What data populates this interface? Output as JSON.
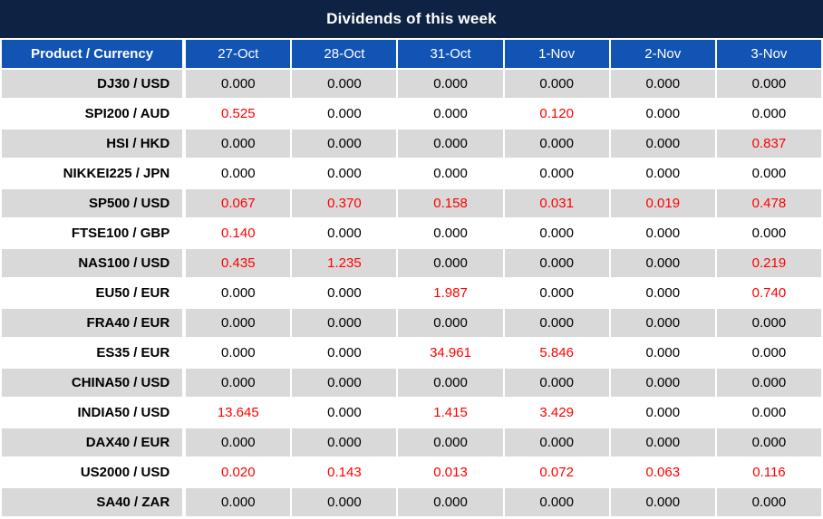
{
  "chart_data": {
    "type": "table",
    "title": "Dividends of this week",
    "columns": [
      "Product / Currency",
      "27-Oct",
      "28-Oct",
      "31-Oct",
      "1-Nov",
      "2-Nov",
      "3-Nov"
    ],
    "rows": [
      {
        "product": "DJ30 / USD",
        "values": [
          "0.000",
          "0.000",
          "0.000",
          "0.000",
          "0.000",
          "0.000"
        ]
      },
      {
        "product": "SPI200 / AUD",
        "values": [
          "0.525",
          "0.000",
          "0.000",
          "0.120",
          "0.000",
          "0.000"
        ]
      },
      {
        "product": "HSI / HKD",
        "values": [
          "0.000",
          "0.000",
          "0.000",
          "0.000",
          "0.000",
          "0.837"
        ]
      },
      {
        "product": "NIKKEI225 / JPN",
        "values": [
          "0.000",
          "0.000",
          "0.000",
          "0.000",
          "0.000",
          "0.000"
        ]
      },
      {
        "product": "SP500 / USD",
        "values": [
          "0.067",
          "0.370",
          "0.158",
          "0.031",
          "0.019",
          "0.478"
        ]
      },
      {
        "product": "FTSE100 / GBP",
        "values": [
          "0.140",
          "0.000",
          "0.000",
          "0.000",
          "0.000",
          "0.000"
        ]
      },
      {
        "product": "NAS100 / USD",
        "values": [
          "0.435",
          "1.235",
          "0.000",
          "0.000",
          "0.000",
          "0.219"
        ]
      },
      {
        "product": "EU50 / EUR",
        "values": [
          "0.000",
          "0.000",
          "1.987",
          "0.000",
          "0.000",
          "0.740"
        ]
      },
      {
        "product": "FRA40 / EUR",
        "values": [
          "0.000",
          "0.000",
          "0.000",
          "0.000",
          "0.000",
          "0.000"
        ]
      },
      {
        "product": "ES35 / EUR",
        "values": [
          "0.000",
          "0.000",
          "34.961",
          "5.846",
          "0.000",
          "0.000"
        ]
      },
      {
        "product": "CHINA50 / USD",
        "values": [
          "0.000",
          "0.000",
          "0.000",
          "0.000",
          "0.000",
          "0.000"
        ]
      },
      {
        "product": "INDIA50 / USD",
        "values": [
          "13.645",
          "0.000",
          "1.415",
          "3.429",
          "0.000",
          "0.000"
        ]
      },
      {
        "product": "DAX40 / EUR",
        "values": [
          "0.000",
          "0.000",
          "0.000",
          "0.000",
          "0.000",
          "0.000"
        ]
      },
      {
        "product": "US2000 / USD",
        "values": [
          "0.020",
          "0.143",
          "0.013",
          "0.072",
          "0.063",
          "0.116"
        ]
      },
      {
        "product": "SA40 / ZAR",
        "values": [
          "0.000",
          "0.000",
          "0.000",
          "0.000",
          "0.000",
          "0.000"
        ]
      }
    ],
    "layout": {
      "striped": true,
      "legend": "none",
      "grid": "white-2px-gaps"
    }
  },
  "colors": {
    "title_bg": "#0e2343",
    "header_bg": "#1254b4",
    "stripe_bg": "#d9d9d9",
    "zero_value_text": "#000000",
    "dividend_value_text": "#ff0000",
    "header_text": "#ffffff"
  }
}
